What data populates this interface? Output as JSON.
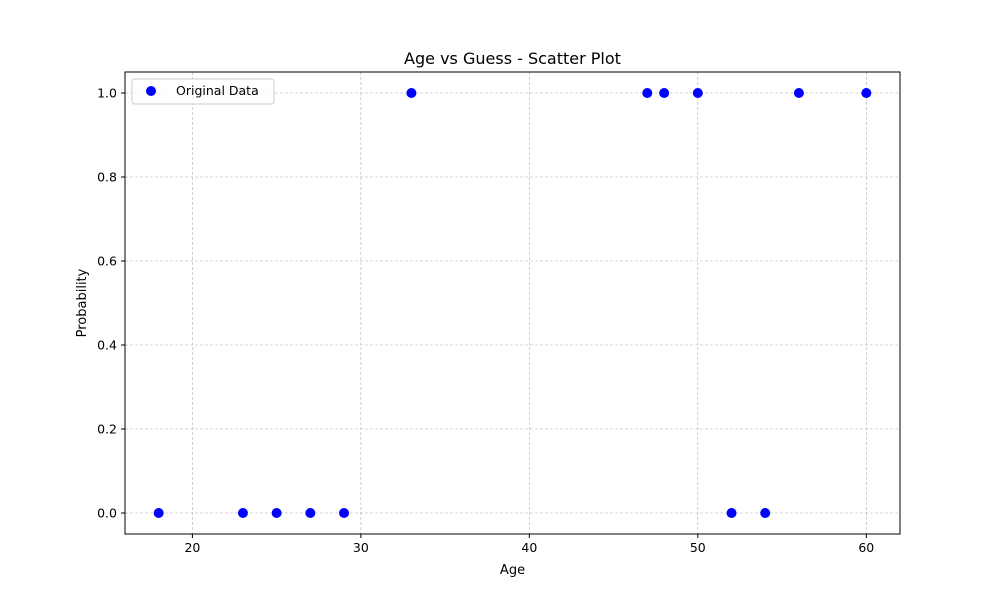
{
  "chart_data": {
    "type": "scatter",
    "title": "Age vs Guess - Scatter Plot",
    "xlabel": "Age",
    "ylabel": "Probability",
    "xlim": [
      16,
      62
    ],
    "ylim": [
      -0.05,
      1.05
    ],
    "xticks": [
      20,
      30,
      40,
      50,
      60
    ],
    "xtick_labels": [
      "20",
      "30",
      "40",
      "50",
      "60"
    ],
    "yticks": [
      0.0,
      0.2,
      0.4,
      0.6,
      0.8,
      1.0
    ],
    "ytick_labels": [
      "0.0",
      "0.2",
      "0.4",
      "0.6",
      "0.8",
      "1.0"
    ],
    "grid": true,
    "legend_position": "top-left",
    "series": [
      {
        "name": "Original Data",
        "color": "#0000ff",
        "x": [
          18,
          23,
          25,
          27,
          29,
          33,
          47,
          48,
          50,
          52,
          54,
          56,
          60
        ],
        "y": [
          0,
          0,
          0,
          0,
          0,
          1,
          1,
          1,
          1,
          0,
          0,
          1,
          1
        ]
      }
    ]
  }
}
